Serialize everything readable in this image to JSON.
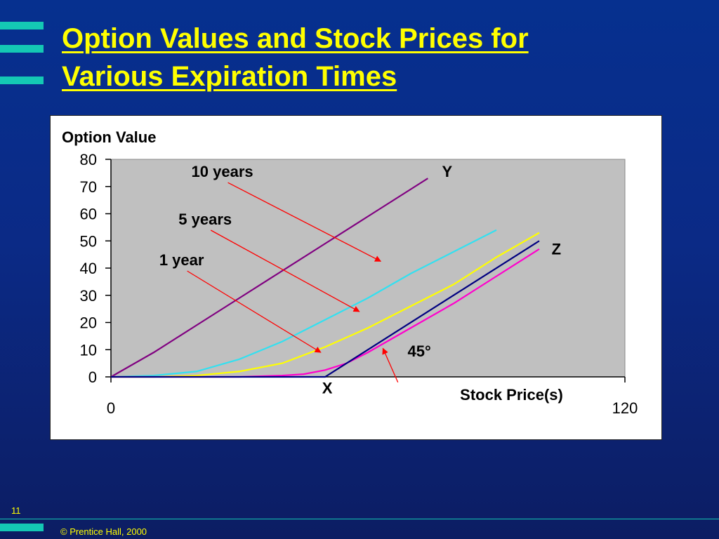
{
  "slide": {
    "title_line1": "Option Values and Stock Prices for",
    "title_line2": "Various Expiration Times",
    "page_number": "11",
    "copyright": "© Prentice Hall, 2000"
  },
  "colors": {
    "accent": "#14c8b4",
    "title": "#ffff00",
    "plot_bg": "#c0c0c0",
    "arrow": "#ff0000"
  },
  "chart_data": {
    "type": "line",
    "ylabel": "Option Value",
    "xlabel": "Stock Price(s)",
    "xlim": [
      0,
      120
    ],
    "ylim": [
      0,
      80
    ],
    "x_ticks": [
      "0",
      "120"
    ],
    "y_ticks": [
      "0",
      "10",
      "20",
      "30",
      "40",
      "50",
      "60",
      "70",
      "80"
    ],
    "grid": false,
    "series": [
      {
        "color": "#800080",
        "x": [
          0,
          10,
          20,
          30,
          40,
          50,
          60,
          70,
          74
        ],
        "y": [
          0,
          9,
          19,
          29,
          39,
          49,
          59,
          69,
          73
        ]
      },
      {
        "color": "#33e0f0",
        "x": [
          0,
          10,
          20,
          30,
          40,
          50,
          60,
          70,
          80,
          90
        ],
        "y": [
          0,
          0.5,
          2,
          6.5,
          13,
          21,
          29,
          38,
          46,
          54
        ]
      },
      {
        "color": "#ffff00",
        "x": [
          0,
          10,
          20,
          30,
          40,
          50,
          60,
          70,
          80,
          90,
          100
        ],
        "y": [
          0,
          0,
          0.5,
          2,
          5,
          11,
          18,
          26,
          34,
          44,
          53
        ]
      },
      {
        "color": "#ff00cc",
        "x": [
          0,
          20,
          30,
          40,
          45,
          50,
          55,
          60,
          70,
          80,
          90,
          100
        ],
        "y": [
          0,
          0,
          0,
          0.5,
          1,
          2.5,
          5,
          9,
          18,
          27,
          37,
          47
        ]
      },
      {
        "color": "#000080",
        "x": [
          0,
          50,
          100
        ],
        "y": [
          0,
          0,
          50
        ]
      }
    ],
    "annotations": [
      {
        "text": "10 years",
        "x": 26,
        "y": 73.5,
        "arrow_to": [
          63,
          42.5
        ]
      },
      {
        "text": "5 years",
        "x": 22,
        "y": 56,
        "arrow_to": [
          58,
          24
        ]
      },
      {
        "text": "1 year",
        "x": 16.5,
        "y": 41,
        "arrow_to": [
          49,
          9
        ]
      },
      {
        "text": "45°",
        "x": 72,
        "y": 7.5,
        "arrow_to": [
          63.5,
          10.5
        ],
        "arrow_from": [
          67,
          -2
        ]
      },
      {
        "text": "Y",
        "x": 78.5,
        "y": 73.5
      },
      {
        "text": "Z",
        "x": 104,
        "y": 45
      },
      {
        "text": "X",
        "x": 50.5,
        "y": -6
      }
    ]
  }
}
